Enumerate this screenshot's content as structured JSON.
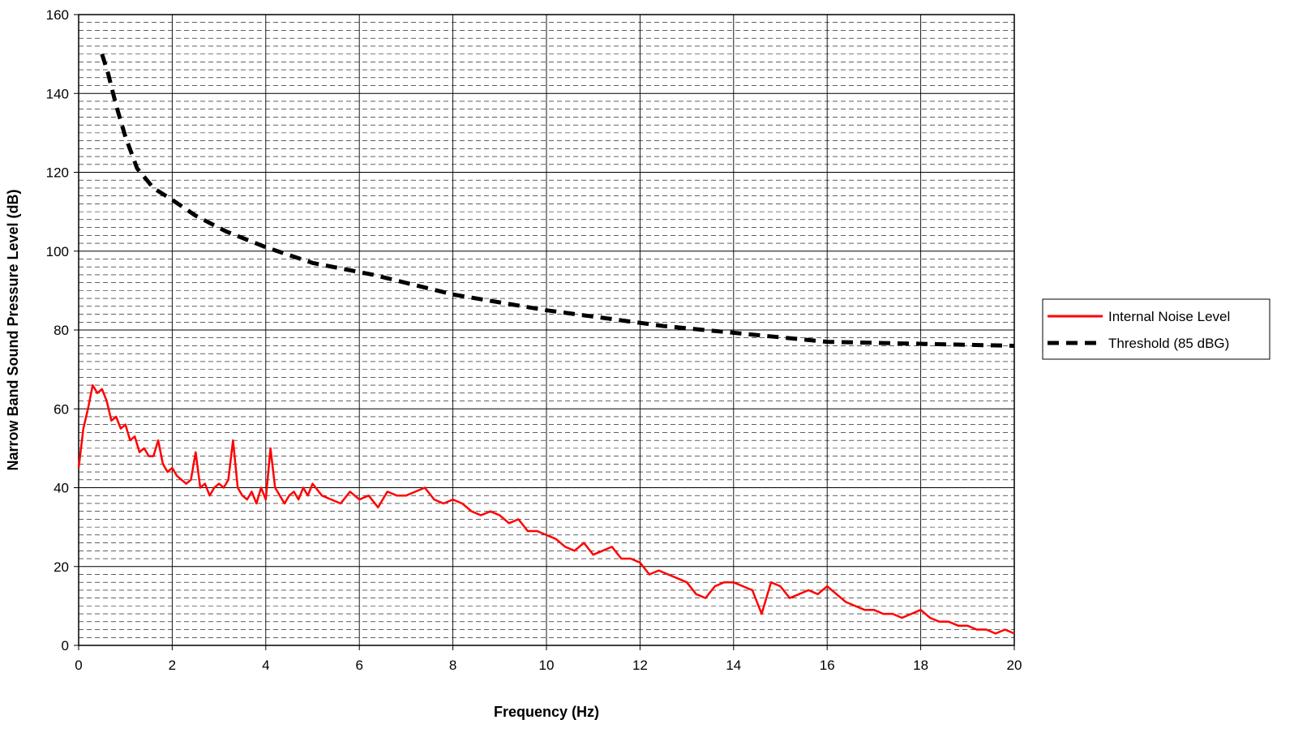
{
  "chart_data": {
    "type": "line",
    "title": "",
    "xlabel": "Frequency (Hz)",
    "ylabel": "Narrow Band Sound Pressure Level (dB)",
    "xlim": [
      0,
      20
    ],
    "ylim": [
      0,
      160
    ],
    "x_ticks": [
      "0",
      "2",
      "4",
      "6",
      "8",
      "10",
      "12",
      "14",
      "16",
      "18",
      "20"
    ],
    "y_ticks": [
      "0",
      "20",
      "40",
      "60",
      "80",
      "100",
      "120",
      "140",
      "160"
    ],
    "grid": true,
    "legend_position": "right",
    "series": [
      {
        "name": "Internal Noise Level",
        "color": "#ff0000",
        "style": "solid",
        "x": [
          0,
          0.1,
          0.2,
          0.3,
          0.4,
          0.5,
          0.6,
          0.7,
          0.8,
          0.9,
          1.0,
          1.1,
          1.2,
          1.3,
          1.4,
          1.5,
          1.6,
          1.7,
          1.8,
          1.9,
          2.0,
          2.1,
          2.2,
          2.3,
          2.4,
          2.5,
          2.6,
          2.7,
          2.8,
          2.9,
          3.0,
          3.1,
          3.2,
          3.3,
          3.4,
          3.5,
          3.6,
          3.7,
          3.8,
          3.9,
          4.0,
          4.1,
          4.2,
          4.3,
          4.4,
          4.5,
          4.6,
          4.7,
          4.8,
          4.9,
          5.0,
          5.2,
          5.4,
          5.6,
          5.8,
          6.0,
          6.2,
          6.4,
          6.6,
          6.8,
          7.0,
          7.2,
          7.4,
          7.6,
          7.8,
          8.0,
          8.2,
          8.4,
          8.6,
          8.8,
          9.0,
          9.2,
          9.4,
          9.6,
          9.8,
          10.0,
          10.2,
          10.4,
          10.6,
          10.8,
          11.0,
          11.2,
          11.4,
          11.6,
          11.8,
          12.0,
          12.2,
          12.4,
          12.6,
          12.8,
          13.0,
          13.2,
          13.4,
          13.6,
          13.8,
          14.0,
          14.2,
          14.4,
          14.6,
          14.8,
          15.0,
          15.2,
          15.4,
          15.6,
          15.8,
          16.0,
          16.2,
          16.4,
          16.6,
          16.8,
          17.0,
          17.2,
          17.4,
          17.6,
          17.8,
          18.0,
          18.2,
          18.4,
          18.6,
          18.8,
          19.0,
          19.2,
          19.4,
          19.6,
          19.8,
          20.0
        ],
        "y": [
          45,
          55,
          60,
          66,
          64,
          65,
          62,
          57,
          58,
          55,
          56,
          52,
          53,
          49,
          50,
          48,
          48,
          52,
          46,
          44,
          45,
          43,
          42,
          41,
          42,
          49,
          40,
          41,
          38,
          40,
          41,
          40,
          42,
          52,
          40,
          38,
          37,
          39,
          36,
          40,
          37,
          50,
          40,
          38,
          36,
          38,
          39,
          37,
          40,
          38,
          41,
          38,
          37,
          36,
          39,
          37,
          38,
          35,
          39,
          38,
          38,
          39,
          40,
          37,
          36,
          37,
          36,
          34,
          33,
          34,
          33,
          31,
          32,
          29,
          29,
          28,
          27,
          25,
          24,
          26,
          23,
          24,
          25,
          22,
          22,
          21,
          18,
          19,
          18,
          17,
          16,
          13,
          12,
          15,
          16,
          16,
          15,
          14,
          8,
          16,
          15,
          12,
          13,
          14,
          13,
          15,
          13,
          11,
          10,
          9,
          9,
          8,
          8,
          7,
          8,
          9,
          7,
          6,
          6,
          5,
          5,
          4,
          4,
          3,
          4,
          3
        ]
      },
      {
        "name": "Threshold (85 dBG)",
        "color": "#000000",
        "style": "dashed",
        "x": [
          0.5,
          0.63,
          0.8,
          1.0,
          1.25,
          1.6,
          2.0,
          2.5,
          3.15,
          4.0,
          5.0,
          6.3,
          8.0,
          10.0,
          12.5,
          16.0,
          20.0
        ],
        "y": [
          150,
          145,
          137,
          129,
          121,
          116,
          113,
          109,
          105,
          101,
          97,
          94,
          89,
          85,
          81,
          77,
          76
        ]
      }
    ]
  }
}
